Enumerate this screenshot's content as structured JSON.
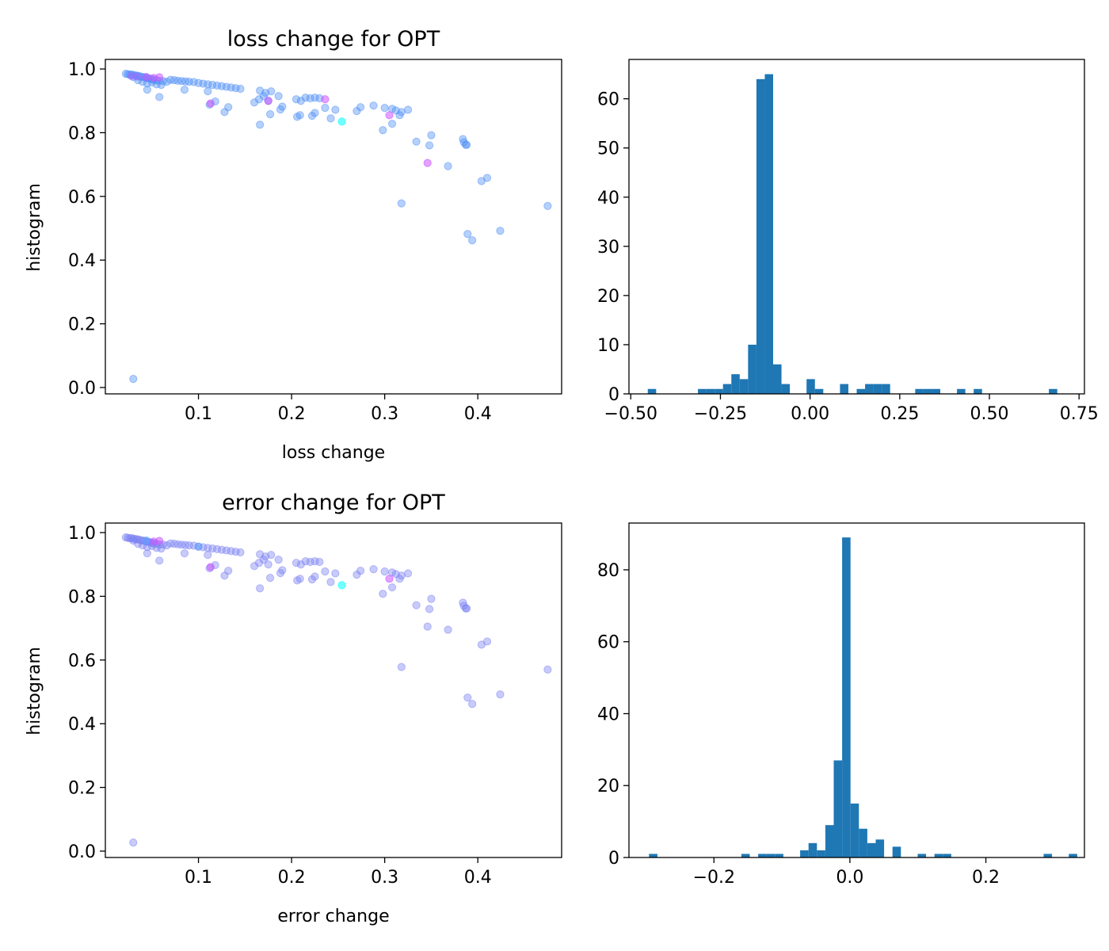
{
  "chart_data": [
    {
      "type": "scatter",
      "title": "loss change for OPT",
      "xlabel": "loss change",
      "ylabel": "histogram",
      "xlim": [
        0.0,
        0.49
      ],
      "ylim": [
        -0.02,
        1.03
      ],
      "xticks": [
        0.1,
        0.2,
        0.3,
        0.4
      ],
      "yticks": [
        0.0,
        0.2,
        0.4,
        0.6,
        0.8,
        1.0
      ],
      "xtick_labels": [
        "0.1",
        "0.2",
        "0.3",
        "0.4"
      ],
      "ytick_labels": [
        "0.0",
        "0.2",
        "0.4",
        "0.6",
        "0.8",
        "1.0"
      ],
      "grid": false,
      "point_color": "#4f8ff5",
      "highlight_colors": [
        "#cc55ff",
        "#00ffff",
        "#a070ff"
      ],
      "points": [
        [
          0.022,
          0.985
        ],
        [
          0.024,
          0.984
        ],
        [
          0.026,
          0.982
        ],
        [
          0.028,
          0.983
        ],
        [
          0.03,
          0.981
        ],
        [
          0.032,
          0.98
        ],
        [
          0.034,
          0.979
        ],
        [
          0.036,
          0.978
        ],
        [
          0.038,
          0.976
        ],
        [
          0.04,
          0.975
        ],
        [
          0.042,
          0.974
        ],
        [
          0.044,
          0.972
        ],
        [
          0.046,
          0.971
        ],
        [
          0.048,
          0.97
        ],
        [
          0.05,
          0.968
        ],
        [
          0.052,
          0.966
        ],
        [
          0.055,
          0.965
        ],
        [
          0.058,
          0.963
        ],
        [
          0.062,
          0.962
        ],
        [
          0.066,
          0.96
        ],
        [
          0.07,
          0.966
        ],
        [
          0.074,
          0.965
        ],
        [
          0.078,
          0.963
        ],
        [
          0.082,
          0.962
        ],
        [
          0.086,
          0.961
        ],
        [
          0.09,
          0.96
        ],
        [
          0.095,
          0.959
        ],
        [
          0.1,
          0.956
        ],
        [
          0.105,
          0.954
        ],
        [
          0.11,
          0.952
        ],
        [
          0.115,
          0.95
        ],
        [
          0.12,
          0.948
        ],
        [
          0.125,
          0.946
        ],
        [
          0.13,
          0.944
        ],
        [
          0.135,
          0.942
        ],
        [
          0.14,
          0.94
        ],
        [
          0.145,
          0.938
        ],
        [
          0.03,
          0.975
        ],
        [
          0.035,
          0.965
        ],
        [
          0.04,
          0.96
        ],
        [
          0.045,
          0.955
        ],
        [
          0.05,
          0.958
        ],
        [
          0.055,
          0.952
        ],
        [
          0.06,
          0.95
        ],
        [
          0.045,
          0.935
        ],
        [
          0.058,
          0.912
        ],
        [
          0.085,
          0.935
        ],
        [
          0.11,
          0.93
        ],
        [
          0.112,
          0.888
        ],
        [
          0.118,
          0.898
        ],
        [
          0.128,
          0.865
        ],
        [
          0.132,
          0.88
        ],
        [
          0.16,
          0.895
        ],
        [
          0.165,
          0.905
        ],
        [
          0.166,
          0.932
        ],
        [
          0.17,
          0.915
        ],
        [
          0.172,
          0.925
        ],
        [
          0.175,
          0.9
        ],
        [
          0.178,
          0.93
        ],
        [
          0.186,
          0.915
        ],
        [
          0.188,
          0.873
        ],
        [
          0.19,
          0.882
        ],
        [
          0.177,
          0.858
        ],
        [
          0.166,
          0.825
        ],
        [
          0.205,
          0.905
        ],
        [
          0.21,
          0.9
        ],
        [
          0.215,
          0.91
        ],
        [
          0.22,
          0.908
        ],
        [
          0.225,
          0.91
        ],
        [
          0.206,
          0.85
        ],
        [
          0.209,
          0.855
        ],
        [
          0.222,
          0.853
        ],
        [
          0.225,
          0.862
        ],
        [
          0.23,
          0.908
        ],
        [
          0.236,
          0.878
        ],
        [
          0.242,
          0.845
        ],
        [
          0.247,
          0.872
        ],
        [
          0.27,
          0.868
        ],
        [
          0.274,
          0.88
        ],
        [
          0.288,
          0.885
        ],
        [
          0.3,
          0.878
        ],
        [
          0.308,
          0.875
        ],
        [
          0.312,
          0.87
        ],
        [
          0.316,
          0.855
        ],
        [
          0.318,
          0.865
        ],
        [
          0.325,
          0.872
        ],
        [
          0.298,
          0.808
        ],
        [
          0.308,
          0.828
        ],
        [
          0.334,
          0.772
        ],
        [
          0.348,
          0.76
        ],
        [
          0.35,
          0.792
        ],
        [
          0.368,
          0.695
        ],
        [
          0.384,
          0.78
        ],
        [
          0.385,
          0.77
        ],
        [
          0.387,
          0.762
        ],
        [
          0.388,
          0.762
        ],
        [
          0.404,
          0.648
        ],
        [
          0.41,
          0.658
        ],
        [
          0.389,
          0.482
        ],
        [
          0.394,
          0.462
        ],
        [
          0.424,
          0.492
        ],
        [
          0.475,
          0.57
        ],
        [
          0.318,
          0.578
        ],
        [
          0.03,
          0.027
        ]
      ],
      "highlight_points": [
        [
          0.044,
          0.975,
          0
        ],
        [
          0.052,
          0.972,
          0
        ],
        [
          0.058,
          0.974,
          0
        ],
        [
          0.113,
          0.892,
          0
        ],
        [
          0.175,
          0.9,
          0
        ],
        [
          0.236,
          0.905,
          0
        ],
        [
          0.305,
          0.855,
          0
        ],
        [
          0.346,
          0.705,
          0
        ],
        [
          0.254,
          0.835,
          1
        ],
        [
          0.028,
          0.978,
          2
        ],
        [
          0.034,
          0.976,
          2
        ]
      ]
    },
    {
      "type": "histogram",
      "title": "",
      "xlim": [
        -0.505,
        0.765
      ],
      "ylim": [
        0,
        68
      ],
      "xticks": [
        -0.5,
        -0.25,
        0.0,
        0.25,
        0.5,
        0.75
      ],
      "yticks": [
        0,
        10,
        20,
        30,
        40,
        50,
        60
      ],
      "xtick_labels": [
        "−0.50",
        "−0.25",
        "0.00",
        "0.25",
        "0.50",
        "0.75"
      ],
      "ytick_labels": [
        "0",
        "10",
        "20",
        "30",
        "40",
        "50",
        "60"
      ],
      "bar_color": "#1f77b4",
      "bin_start": -0.4525,
      "bin_width": 0.0233,
      "counts": [
        1,
        0,
        0,
        0,
        0,
        0,
        1,
        1,
        1,
        2,
        4,
        3,
        10,
        64,
        65,
        6,
        2,
        0,
        0,
        3,
        1,
        0,
        0,
        2,
        0,
        1,
        2,
        2,
        2,
        0,
        0,
        0,
        1,
        1,
        1,
        0,
        0,
        1,
        0,
        1,
        0,
        0,
        0,
        0,
        0,
        0,
        0,
        0,
        1
      ]
    },
    {
      "type": "scatter",
      "title": "error change for OPT",
      "xlabel": "error change",
      "ylabel": "histogram",
      "xlim": [
        0.0,
        0.49
      ],
      "ylim": [
        -0.02,
        1.03
      ],
      "xticks": [
        0.1,
        0.2,
        0.3,
        0.4
      ],
      "yticks": [
        0.0,
        0.2,
        0.4,
        0.6,
        0.8,
        1.0
      ],
      "xtick_labels": [
        "0.1",
        "0.2",
        "0.3",
        "0.4"
      ],
      "ytick_labels": [
        "0.0",
        "0.2",
        "0.4",
        "0.6",
        "0.8",
        "1.0"
      ],
      "grid": false,
      "point_color": "#7c82f2",
      "highlight_colors": [
        "#cc55ff",
        "#00ffff",
        "#5ea0ff"
      ],
      "points": [
        [
          0.022,
          0.985
        ],
        [
          0.024,
          0.984
        ],
        [
          0.026,
          0.982
        ],
        [
          0.028,
          0.983
        ],
        [
          0.03,
          0.981
        ],
        [
          0.032,
          0.98
        ],
        [
          0.034,
          0.979
        ],
        [
          0.036,
          0.978
        ],
        [
          0.038,
          0.976
        ],
        [
          0.04,
          0.975
        ],
        [
          0.042,
          0.974
        ],
        [
          0.044,
          0.972
        ],
        [
          0.046,
          0.971
        ],
        [
          0.048,
          0.97
        ],
        [
          0.05,
          0.968
        ],
        [
          0.052,
          0.966
        ],
        [
          0.055,
          0.965
        ],
        [
          0.058,
          0.963
        ],
        [
          0.062,
          0.962
        ],
        [
          0.066,
          0.96
        ],
        [
          0.07,
          0.966
        ],
        [
          0.074,
          0.965
        ],
        [
          0.078,
          0.963
        ],
        [
          0.082,
          0.962
        ],
        [
          0.086,
          0.961
        ],
        [
          0.09,
          0.96
        ],
        [
          0.095,
          0.959
        ],
        [
          0.1,
          0.956
        ],
        [
          0.105,
          0.954
        ],
        [
          0.11,
          0.952
        ],
        [
          0.115,
          0.95
        ],
        [
          0.12,
          0.948
        ],
        [
          0.125,
          0.946
        ],
        [
          0.13,
          0.944
        ],
        [
          0.135,
          0.942
        ],
        [
          0.14,
          0.94
        ],
        [
          0.145,
          0.938
        ],
        [
          0.03,
          0.975
        ],
        [
          0.035,
          0.965
        ],
        [
          0.04,
          0.96
        ],
        [
          0.045,
          0.955
        ],
        [
          0.05,
          0.958
        ],
        [
          0.055,
          0.952
        ],
        [
          0.06,
          0.95
        ],
        [
          0.045,
          0.935
        ],
        [
          0.058,
          0.912
        ],
        [
          0.085,
          0.935
        ],
        [
          0.11,
          0.93
        ],
        [
          0.112,
          0.888
        ],
        [
          0.118,
          0.898
        ],
        [
          0.128,
          0.865
        ],
        [
          0.132,
          0.88
        ],
        [
          0.16,
          0.895
        ],
        [
          0.165,
          0.905
        ],
        [
          0.166,
          0.932
        ],
        [
          0.17,
          0.915
        ],
        [
          0.172,
          0.925
        ],
        [
          0.175,
          0.9
        ],
        [
          0.178,
          0.93
        ],
        [
          0.186,
          0.915
        ],
        [
          0.188,
          0.873
        ],
        [
          0.19,
          0.882
        ],
        [
          0.177,
          0.858
        ],
        [
          0.166,
          0.825
        ],
        [
          0.205,
          0.905
        ],
        [
          0.21,
          0.9
        ],
        [
          0.215,
          0.91
        ],
        [
          0.22,
          0.908
        ],
        [
          0.225,
          0.91
        ],
        [
          0.206,
          0.85
        ],
        [
          0.209,
          0.855
        ],
        [
          0.222,
          0.853
        ],
        [
          0.225,
          0.862
        ],
        [
          0.23,
          0.908
        ],
        [
          0.236,
          0.878
        ],
        [
          0.242,
          0.845
        ],
        [
          0.247,
          0.872
        ],
        [
          0.27,
          0.868
        ],
        [
          0.274,
          0.88
        ],
        [
          0.288,
          0.885
        ],
        [
          0.3,
          0.878
        ],
        [
          0.308,
          0.875
        ],
        [
          0.312,
          0.87
        ],
        [
          0.316,
          0.855
        ],
        [
          0.318,
          0.865
        ],
        [
          0.325,
          0.872
        ],
        [
          0.298,
          0.808
        ],
        [
          0.308,
          0.828
        ],
        [
          0.334,
          0.772
        ],
        [
          0.348,
          0.76
        ],
        [
          0.35,
          0.792
        ],
        [
          0.368,
          0.695
        ],
        [
          0.384,
          0.78
        ],
        [
          0.385,
          0.77
        ],
        [
          0.387,
          0.762
        ],
        [
          0.388,
          0.762
        ],
        [
          0.404,
          0.648
        ],
        [
          0.41,
          0.658
        ],
        [
          0.389,
          0.482
        ],
        [
          0.394,
          0.462
        ],
        [
          0.424,
          0.492
        ],
        [
          0.475,
          0.57
        ],
        [
          0.318,
          0.578
        ],
        [
          0.03,
          0.027
        ],
        [
          0.346,
          0.705
        ]
      ],
      "highlight_points": [
        [
          0.052,
          0.972,
          0
        ],
        [
          0.058,
          0.974,
          0
        ],
        [
          0.113,
          0.892,
          0
        ],
        [
          0.305,
          0.855,
          0
        ],
        [
          0.254,
          0.835,
          1
        ],
        [
          0.1,
          0.956,
          2
        ],
        [
          0.044,
          0.975,
          2
        ]
      ]
    },
    {
      "type": "histogram",
      "title": "",
      "xlim": [
        -0.325,
        0.345
      ],
      "ylim": [
        0,
        93
      ],
      "xticks": [
        -0.2,
        0.0,
        0.2
      ],
      "yticks": [
        0,
        20,
        40,
        60,
        80
      ],
      "xtick_labels": [
        "−0.2",
        "0.0",
        "0.2"
      ],
      "ytick_labels": [
        "0",
        "20",
        "40",
        "60",
        "80"
      ],
      "bar_color": "#1f77b4",
      "bin_start": -0.2955,
      "bin_width": 0.01235,
      "counts": [
        1,
        0,
        0,
        0,
        0,
        0,
        0,
        0,
        0,
        0,
        0,
        1,
        0,
        1,
        1,
        1,
        0,
        0,
        2,
        4,
        2,
        9,
        27,
        89,
        15,
        8,
        4,
        5,
        0,
        3,
        0,
        0,
        1,
        0,
        1,
        1,
        0,
        0,
        0,
        0,
        0,
        0,
        0,
        0,
        0,
        0,
        0,
        1,
        0,
        0,
        1
      ]
    }
  ]
}
